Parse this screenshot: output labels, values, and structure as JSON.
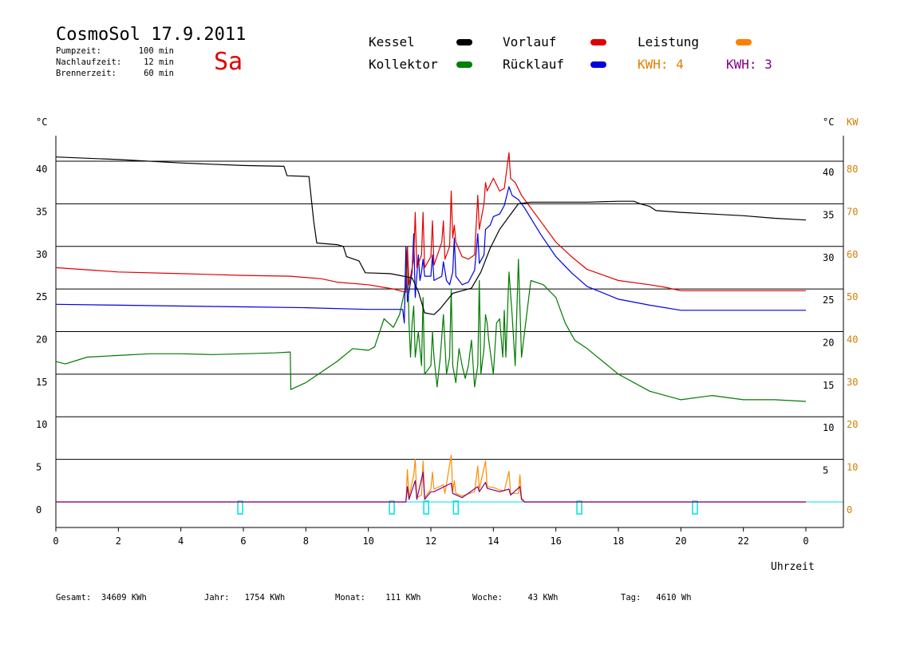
{
  "header": {
    "title": "CosmoSol 17.9.2011",
    "day": "Sa",
    "params": [
      {
        "label": "Pumpzeit:",
        "value": "100 min"
      },
      {
        "label": "Nachlaufzeit:",
        "value": "12 min"
      },
      {
        "label": "Brennerzeit:",
        "value": "60 min"
      }
    ]
  },
  "legend": {
    "items": [
      {
        "label": "Kessel",
        "color": "#000000"
      },
      {
        "label": "Vorlauf",
        "color": "#e00000"
      },
      {
        "label": "Leistung",
        "color": "#ff8000"
      },
      {
        "label": "Kollektor",
        "color": "#008000"
      },
      {
        "label": "Rücklauf",
        "color": "#0000e0"
      }
    ],
    "kwh1": {
      "label": "KWH:",
      "value": "4",
      "color": "#e08000"
    },
    "kwh2": {
      "label": "KWH:",
      "value": "3",
      "color": "#800080"
    }
  },
  "footer": {
    "gesamt_label": "Gesamt:",
    "gesamt_value": "34609 KWh",
    "jahr_label": "Jahr:",
    "jahr_value": "1754 KWh",
    "monat_label": "Monat:",
    "monat_value": "111 KWh",
    "woche_label": "Woche:",
    "woche_value": "43 KWh",
    "tag_label": "Tag:",
    "tag_value": "4610 Wh"
  },
  "chart_data": {
    "type": "line",
    "xlabel": "Uhrzeit",
    "ylabel_left": "°C",
    "ylabel_right": "°C",
    "ylabel_right2": "KW",
    "xlim": [
      0,
      24
    ],
    "ylim": [
      -3,
      43
    ],
    "grid": true,
    "x_ticks": [
      "0",
      "2",
      "4",
      "6",
      "8",
      "10",
      "12",
      "14",
      "16",
      "18",
      "20",
      "22",
      "0"
    ],
    "y_ticks_left": [
      "0",
      "5",
      "10",
      "15",
      "20",
      "25",
      "30",
      "35",
      "40"
    ],
    "y_ticks_right": [
      "5",
      "10",
      "15",
      "20",
      "25",
      "30",
      "35",
      "40"
    ],
    "y_ticks_kw": [
      "0",
      "10",
      "20",
      "30",
      "40",
      "50",
      "60",
      "70",
      "80"
    ],
    "colors": {
      "kessel": "#000000",
      "vorlauf": "#e00000",
      "ruecklauf": "#0000e0",
      "kollektor": "#007a00",
      "leistung": "#ff8c00",
      "leistung2": "#800080",
      "pump": "#00e0e0"
    },
    "series": [
      {
        "name": "Kessel",
        "key": "kessel",
        "points": [
          [
            0,
            40.5
          ],
          [
            2,
            40.2
          ],
          [
            4,
            39.8
          ],
          [
            6,
            39.5
          ],
          [
            7.3,
            39.4
          ],
          [
            7.4,
            38.3
          ],
          [
            8.1,
            38.2
          ],
          [
            8.25,
            33
          ],
          [
            8.35,
            30.4
          ],
          [
            9.0,
            30.2
          ],
          [
            9.2,
            30.0
          ],
          [
            9.3,
            28.8
          ],
          [
            9.7,
            28.3
          ],
          [
            9.9,
            26.9
          ],
          [
            10.7,
            26.8
          ],
          [
            11.0,
            26.6
          ],
          [
            11.4,
            26.3
          ],
          [
            11.6,
            24.7
          ],
          [
            11.8,
            22.2
          ],
          [
            12.1,
            22.0
          ],
          [
            12.3,
            22.7
          ],
          [
            12.5,
            23.6
          ],
          [
            12.7,
            24.5
          ],
          [
            13.0,
            24.8
          ],
          [
            13.3,
            25.1
          ],
          [
            13.6,
            27
          ],
          [
            13.9,
            29.8
          ],
          [
            14.2,
            32
          ],
          [
            14.5,
            33.5
          ],
          [
            14.8,
            35
          ],
          [
            15.2,
            35.2
          ],
          [
            16,
            35.2
          ],
          [
            17,
            35.2
          ],
          [
            18,
            35.3
          ],
          [
            18.5,
            35.3
          ],
          [
            18.7,
            35.0
          ],
          [
            19,
            34.7
          ],
          [
            19.2,
            34.2
          ],
          [
            20,
            34.0
          ],
          [
            21,
            33.8
          ],
          [
            22,
            33.6
          ],
          [
            23,
            33.3
          ],
          [
            24,
            33.1
          ]
        ]
      },
      {
        "name": "Vorlauf",
        "key": "vorlauf",
        "points": [
          [
            0,
            27.5
          ],
          [
            2,
            27.0
          ],
          [
            4,
            26.8
          ],
          [
            6,
            26.6
          ],
          [
            7.5,
            26.5
          ],
          [
            8.5,
            26.2
          ],
          [
            9,
            25.8
          ],
          [
            10,
            25.5
          ],
          [
            10.8,
            25.0
          ],
          [
            11.2,
            24.6
          ],
          [
            11.25,
            30
          ],
          [
            11.3,
            25.5
          ],
          [
            11.45,
            28.5
          ],
          [
            11.5,
            34
          ],
          [
            11.55,
            27.5
          ],
          [
            11.7,
            29
          ],
          [
            11.75,
            34
          ],
          [
            11.8,
            27.5
          ],
          [
            12.0,
            28.8
          ],
          [
            12.05,
            33
          ],
          [
            12.1,
            27.8
          ],
          [
            12.35,
            30.5
          ],
          [
            12.4,
            33
          ],
          [
            12.45,
            28.5
          ],
          [
            12.6,
            30
          ],
          [
            12.65,
            36.5
          ],
          [
            12.7,
            31
          ],
          [
            12.75,
            32.5
          ],
          [
            12.8,
            30.5
          ],
          [
            13.0,
            28.8
          ],
          [
            13.2,
            28.5
          ],
          [
            13.4,
            29
          ],
          [
            13.5,
            36
          ],
          [
            13.55,
            32
          ],
          [
            13.7,
            35
          ],
          [
            13.75,
            37.5
          ],
          [
            13.8,
            36.5
          ],
          [
            14.0,
            38
          ],
          [
            14.2,
            36.5
          ],
          [
            14.35,
            36.8
          ],
          [
            14.5,
            41
          ],
          [
            14.55,
            38
          ],
          [
            14.7,
            37.5
          ],
          [
            14.9,
            36
          ],
          [
            15.0,
            35.5
          ],
          [
            15.5,
            33
          ],
          [
            16,
            30.5
          ],
          [
            16.5,
            28.8
          ],
          [
            17,
            27.3
          ],
          [
            18,
            26.0
          ],
          [
            19,
            25.5
          ],
          [
            19.5,
            25.2
          ],
          [
            20,
            24.8
          ],
          [
            22,
            24.8
          ],
          [
            24,
            24.8
          ]
        ]
      },
      {
        "name": "Rücklauf",
        "key": "ruecklauf",
        "points": [
          [
            0,
            23.2
          ],
          [
            2,
            23.1
          ],
          [
            4,
            23.0
          ],
          [
            6,
            22.9
          ],
          [
            8,
            22.8
          ],
          [
            10,
            22.6
          ],
          [
            11.1,
            22.6
          ],
          [
            11.15,
            21
          ],
          [
            11.2,
            30
          ],
          [
            11.25,
            23.5
          ],
          [
            11.4,
            27
          ],
          [
            11.45,
            31.5
          ],
          [
            11.5,
            24
          ],
          [
            11.6,
            29
          ],
          [
            11.65,
            26
          ],
          [
            11.7,
            27
          ],
          [
            11.75,
            28.5
          ],
          [
            11.8,
            26.5
          ],
          [
            12.0,
            26.5
          ],
          [
            12.05,
            29
          ],
          [
            12.1,
            26
          ],
          [
            12.35,
            26.5
          ],
          [
            12.4,
            28.2
          ],
          [
            12.5,
            26
          ],
          [
            12.6,
            25.5
          ],
          [
            12.7,
            27
          ],
          [
            12.75,
            31
          ],
          [
            12.8,
            26.5
          ],
          [
            13.0,
            25.5
          ],
          [
            13.2,
            25.8
          ],
          [
            13.4,
            27.2
          ],
          [
            13.5,
            31.5
          ],
          [
            13.55,
            28
          ],
          [
            13.7,
            29
          ],
          [
            13.75,
            32
          ],
          [
            13.9,
            32.5
          ],
          [
            14.0,
            33.5
          ],
          [
            14.2,
            33.8
          ],
          [
            14.35,
            34.8
          ],
          [
            14.5,
            37
          ],
          [
            14.6,
            36
          ],
          [
            14.8,
            35.5
          ],
          [
            14.9,
            35
          ],
          [
            15.0,
            34.5
          ],
          [
            15.5,
            31.5
          ],
          [
            16,
            28.8
          ],
          [
            16.5,
            26.9
          ],
          [
            17,
            25.3
          ],
          [
            18,
            23.8
          ],
          [
            19,
            23.1
          ],
          [
            20,
            22.5
          ],
          [
            22,
            22.5
          ],
          [
            24,
            22.5
          ]
        ]
      },
      {
        "name": "Kollektor",
        "key": "kollektor",
        "points": [
          [
            0,
            16.5
          ],
          [
            0.3,
            16.2
          ],
          [
            1,
            17.0
          ],
          [
            2,
            17.2
          ],
          [
            3,
            17.4
          ],
          [
            4,
            17.4
          ],
          [
            5,
            17.3
          ],
          [
            6,
            17.4
          ],
          [
            7,
            17.5
          ],
          [
            7.5,
            17.6
          ],
          [
            7.52,
            13.2
          ],
          [
            8,
            14
          ],
          [
            9,
            16.5
          ],
          [
            9.5,
            18
          ],
          [
            10,
            17.8
          ],
          [
            10.2,
            18.2
          ],
          [
            10.5,
            21.5
          ],
          [
            10.8,
            20.5
          ],
          [
            11.0,
            22
          ],
          [
            11.2,
            25.5
          ],
          [
            11.25,
            30
          ],
          [
            11.3,
            21
          ],
          [
            11.35,
            17
          ],
          [
            11.4,
            21
          ],
          [
            11.45,
            23
          ],
          [
            11.5,
            17
          ],
          [
            11.6,
            20
          ],
          [
            11.7,
            16
          ],
          [
            11.75,
            24
          ],
          [
            11.8,
            15
          ],
          [
            12.0,
            16
          ],
          [
            12.05,
            20
          ],
          [
            12.1,
            17
          ],
          [
            12.2,
            13.5
          ],
          [
            12.3,
            17
          ],
          [
            12.4,
            22
          ],
          [
            12.5,
            15
          ],
          [
            12.6,
            17
          ],
          [
            12.65,
            25
          ],
          [
            12.7,
            16
          ],
          [
            12.8,
            14
          ],
          [
            12.9,
            18
          ],
          [
            13.0,
            16
          ],
          [
            13.1,
            14.5
          ],
          [
            13.2,
            16
          ],
          [
            13.3,
            19
          ],
          [
            13.4,
            13.5
          ],
          [
            13.5,
            16
          ],
          [
            13.55,
            26
          ],
          [
            13.6,
            15
          ],
          [
            13.7,
            18
          ],
          [
            13.75,
            22
          ],
          [
            13.8,
            21
          ],
          [
            13.85,
            19
          ],
          [
            14.0,
            15
          ],
          [
            14.1,
            21
          ],
          [
            14.2,
            21.5
          ],
          [
            14.3,
            17
          ],
          [
            14.35,
            22.5
          ],
          [
            14.4,
            17
          ],
          [
            14.5,
            27
          ],
          [
            14.6,
            22
          ],
          [
            14.7,
            16
          ],
          [
            14.8,
            28.5
          ],
          [
            14.9,
            17
          ],
          [
            15.0,
            20
          ],
          [
            15.2,
            26
          ],
          [
            15.6,
            25.5
          ],
          [
            16.0,
            24
          ],
          [
            16.3,
            21
          ],
          [
            16.6,
            19
          ],
          [
            17,
            18
          ],
          [
            18,
            15
          ],
          [
            19,
            13
          ],
          [
            20,
            12
          ],
          [
            21,
            12.5
          ],
          [
            22,
            12
          ],
          [
            23,
            12
          ],
          [
            24,
            11.8
          ]
        ]
      },
      {
        "name": "Leistung",
        "key": "leistung",
        "points": [
          [
            0,
            0
          ],
          [
            11.2,
            0
          ],
          [
            11.25,
            3.8
          ],
          [
            11.3,
            0.5
          ],
          [
            11.45,
            3.2
          ],
          [
            11.5,
            5
          ],
          [
            11.55,
            0.5
          ],
          [
            11.7,
            0.8
          ],
          [
            11.75,
            4.8
          ],
          [
            11.8,
            0.5
          ],
          [
            12.0,
            1.5
          ],
          [
            12.05,
            3.5
          ],
          [
            12.1,
            1.5
          ],
          [
            12.4,
            2.0
          ],
          [
            12.45,
            1.0
          ],
          [
            12.65,
            5.5
          ],
          [
            12.7,
            1.2
          ],
          [
            12.75,
            2.5
          ],
          [
            12.8,
            1.0
          ],
          [
            13.0,
            0.7
          ],
          [
            13.4,
            1.2
          ],
          [
            13.5,
            4.2
          ],
          [
            13.55,
            1.5
          ],
          [
            13.75,
            4.8
          ],
          [
            13.8,
            1.8
          ],
          [
            14.0,
            1.7
          ],
          [
            14.2,
            1.4
          ],
          [
            14.35,
            1.3
          ],
          [
            14.5,
            3.6
          ],
          [
            14.55,
            1.0
          ],
          [
            14.8,
            1.0
          ],
          [
            14.85,
            3.2
          ],
          [
            14.9,
            0.5
          ],
          [
            15.0,
            0
          ],
          [
            24,
            0
          ]
        ]
      },
      {
        "name": "Leistung2",
        "key": "leistung2",
        "points": [
          [
            0,
            0
          ],
          [
            11.2,
            0
          ],
          [
            11.25,
            1.8
          ],
          [
            11.3,
            0.3
          ],
          [
            11.5,
            2.5
          ],
          [
            11.55,
            0.3
          ],
          [
            11.75,
            3.5
          ],
          [
            11.8,
            0.3
          ],
          [
            12.0,
            1.2
          ],
          [
            12.1,
            1.2
          ],
          [
            12.65,
            2.2
          ],
          [
            12.7,
            1.0
          ],
          [
            13.0,
            0.5
          ],
          [
            13.5,
            1.8
          ],
          [
            13.55,
            1.2
          ],
          [
            13.75,
            2.3
          ],
          [
            13.8,
            1.6
          ],
          [
            14.2,
            1.2
          ],
          [
            14.5,
            1.5
          ],
          [
            14.55,
            0.8
          ],
          [
            14.85,
            1.8
          ],
          [
            14.9,
            0.3
          ],
          [
            15.0,
            0
          ],
          [
            24,
            0
          ]
        ]
      }
    ],
    "pump_markers": [
      5.9,
      10.75,
      11.85,
      12.8,
      16.75,
      20.45
    ]
  }
}
